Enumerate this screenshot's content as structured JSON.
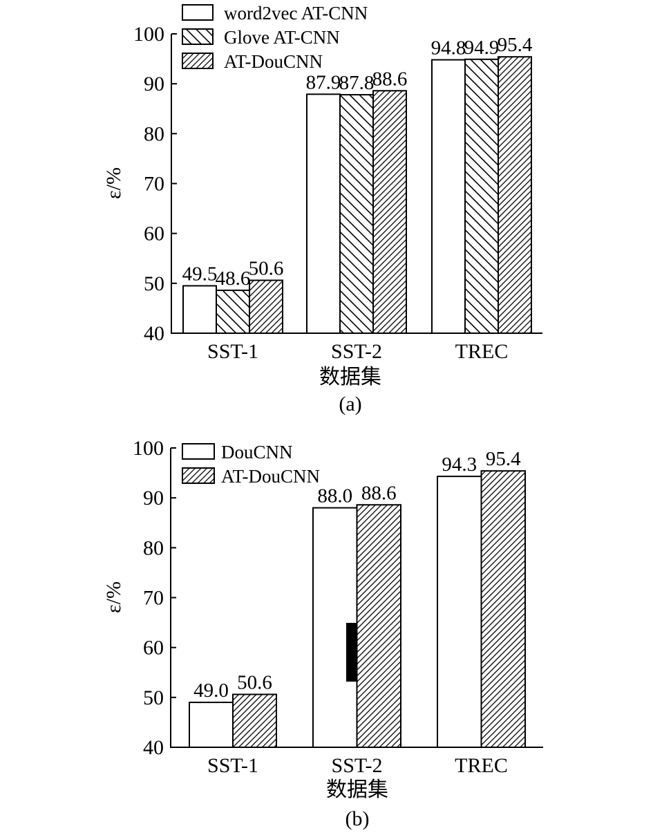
{
  "chart_data": [
    {
      "type": "bar",
      "panel_label": "(a)",
      "xlabel": "数据集",
      "ylabel": "ε/%",
      "ylim": [
        40,
        100
      ],
      "yticks": [
        "40",
        "50",
        "60",
        "70",
        "80",
        "90",
        "100"
      ],
      "grid": false,
      "legend_position": "top-left",
      "categories": [
        "SST-1",
        "SST-2",
        "TREC"
      ],
      "series": [
        {
          "name": "word2vec AT-CNN",
          "values": [
            49.5,
            87.9,
            94.8
          ],
          "labels": [
            "49.5",
            "87.9",
            "94.8"
          ],
          "pattern": "plain"
        },
        {
          "name": "Glove AT-CNN",
          "values": [
            48.6,
            87.8,
            94.9
          ],
          "labels": [
            "48.6",
            "87.8",
            "94.9"
          ],
          "pattern": "hatch-back"
        },
        {
          "name": "AT-DouCNN",
          "values": [
            50.6,
            88.6,
            95.4
          ],
          "labels": [
            "50.6",
            "88.6",
            "95.4"
          ],
          "pattern": "hatch-forward-dense"
        }
      ]
    },
    {
      "type": "bar",
      "panel_label": "(b)",
      "xlabel": "数据集",
      "ylabel": "ε/%",
      "ylim": [
        40,
        100
      ],
      "yticks": [
        "40",
        "50",
        "60",
        "70",
        "80",
        "90",
        "100"
      ],
      "grid": false,
      "legend_position": "top-left",
      "categories": [
        "SST-1",
        "SST-2",
        "TREC"
      ],
      "series": [
        {
          "name": "DouCNN",
          "values": [
            49.0,
            88.0,
            94.3
          ],
          "labels": [
            "49.0",
            "88.0",
            "94.3"
          ],
          "pattern": "plain"
        },
        {
          "name": "AT-DouCNN",
          "values": [
            50.6,
            88.6,
            95.4
          ],
          "labels": [
            "50.6",
            "88.6",
            "95.4"
          ],
          "pattern": "hatch-forward-dense"
        }
      ]
    }
  ]
}
